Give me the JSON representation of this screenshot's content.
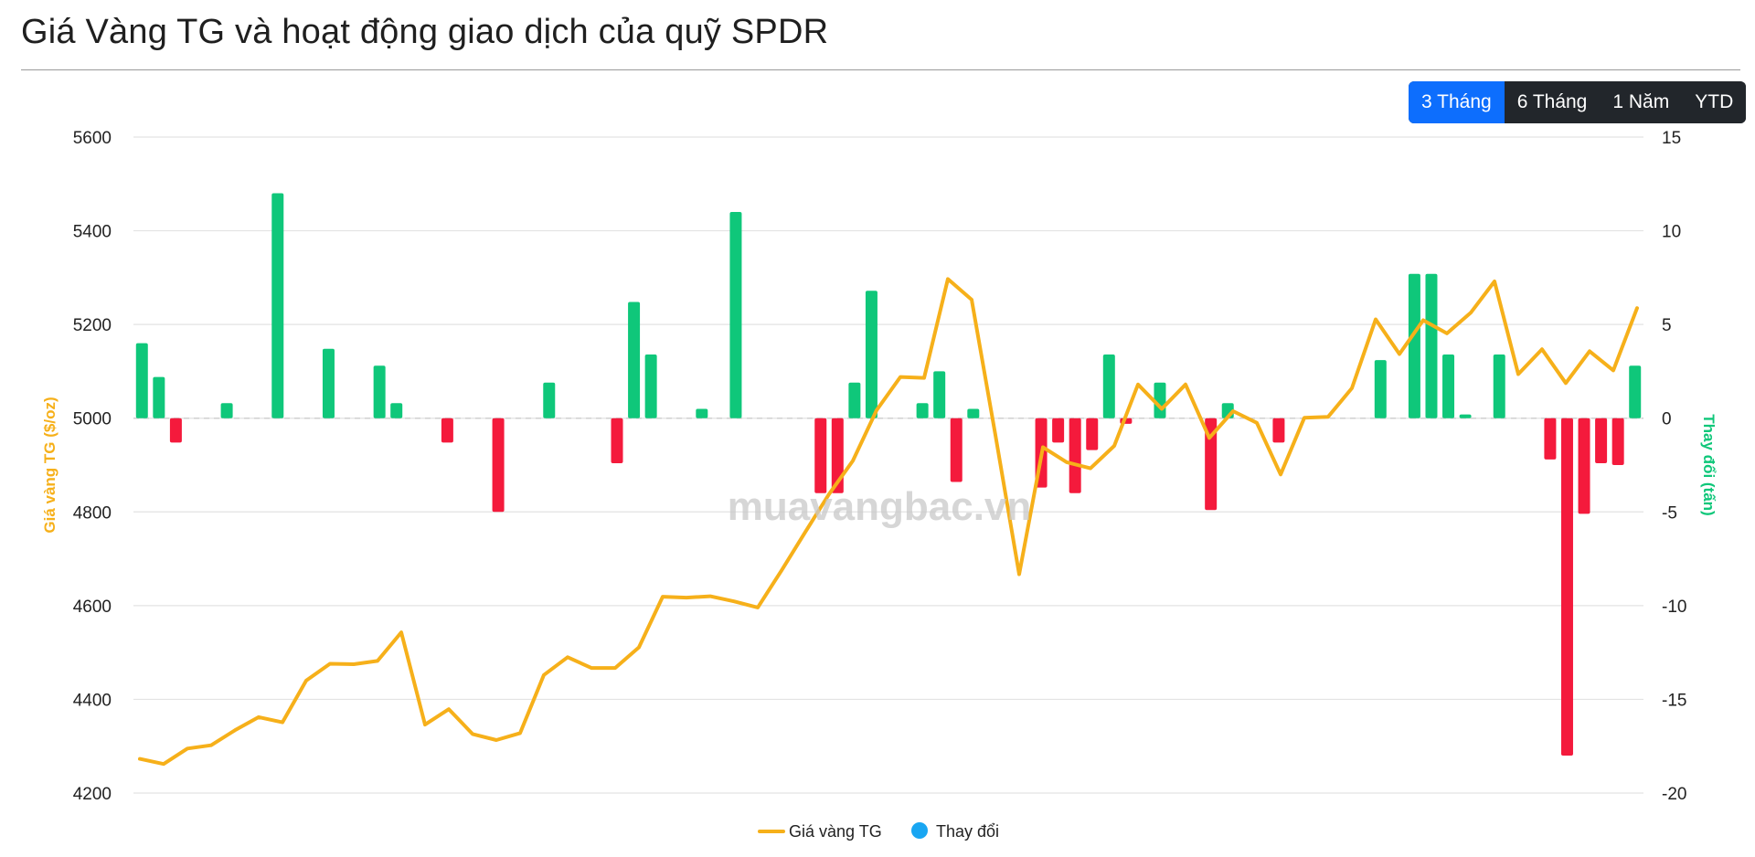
{
  "title": "Giá Vàng TG và hoạt động giao dịch của quỹ SPDR",
  "watermark": "muavangbac.vn",
  "range_buttons": [
    {
      "label": "3 Tháng",
      "active": true
    },
    {
      "label": "6 Tháng",
      "active": false
    },
    {
      "label": "1 Năm",
      "active": false
    },
    {
      "label": "YTD",
      "active": false
    }
  ],
  "colors": {
    "price_line": "#f6b01a",
    "increase_bar": "#0fc77a",
    "decrease_bar": "#f41a3c",
    "legend_change_dot": "#19a6f2",
    "right_axis_title": "#0fc77a",
    "left_axis_title": "#f6b01a",
    "grid": "#e3e3e3",
    "zero_line": "#cfcfcf"
  },
  "chart_data": {
    "type": "bar+line",
    "title": "Giá Vàng TG và hoạt động giao dịch của quỹ SPDR",
    "ylabel_left": "Giá vàng TG ($/oz)",
    "ylabel_right": "Thay đổi (tấn)",
    "ylim_left": [
      4200,
      5600
    ],
    "yticks_left": [
      4200,
      4400,
      4600,
      4800,
      5000,
      5200,
      5400,
      5600
    ],
    "ylim_right": [
      -20,
      15
    ],
    "yticks_right": [
      -20,
      -15,
      -10,
      -5,
      0,
      5,
      10,
      15
    ],
    "grid": true,
    "legend_placement": "bottom-center",
    "series": [
      {
        "name": "Giá vàng TG",
        "kind": "line",
        "axis": "left",
        "values": [
          4273,
          4262,
          4295,
          4302,
          4334,
          4362,
          4351,
          4440,
          4476,
          4475,
          4482,
          4543,
          4346,
          4379,
          4326,
          4313,
          4328,
          4452,
          4490,
          4467,
          4467,
          4511,
          4619,
          4617,
          4620,
          4609,
          4596,
          4675,
          4757,
          4838,
          4909,
          5017,
          5088,
          5086,
          5297,
          5253,
          4964,
          4667,
          4938,
          4906,
          4893,
          4941,
          5072,
          5020,
          5072,
          4958,
          5015,
          4990,
          4880,
          5001,
          5003,
          5064,
          5211,
          5137,
          5209,
          5181,
          5225,
          5292,
          5094,
          5147,
          5075,
          5143,
          5102,
          5235
        ]
      },
      {
        "name": "Thay đổi",
        "kind": "bar",
        "axis": "right",
        "values": [
          4.0,
          2.2,
          -1.3,
          0,
          0,
          0.8,
          0,
          0,
          12.0,
          0,
          0,
          3.7,
          0,
          0,
          2.8,
          0.8,
          0,
          0,
          -1.3,
          0,
          0,
          -5.0,
          0,
          0,
          1.9,
          0,
          0,
          0,
          -2.4,
          6.2,
          3.4,
          0,
          0,
          0.5,
          0,
          11.0,
          0,
          0,
          0,
          0,
          -4.0,
          -4.0,
          1.9,
          6.8,
          0,
          0,
          0.8,
          2.5,
          -3.4,
          0.5,
          0,
          0,
          0,
          -3.7,
          -1.3,
          -4.0,
          -1.7,
          3.4,
          -0.3,
          0,
          1.9,
          0,
          0,
          -4.9,
          0.8,
          0,
          0,
          -1.3,
          0,
          0,
          0,
          0,
          0,
          3.1,
          0,
          7.7,
          7.7,
          3.4,
          0.2,
          0,
          3.4,
          0,
          0,
          -2.2,
          -18.0,
          -5.1,
          -2.4,
          -2.5,
          2.8
        ]
      }
    ]
  },
  "legend": [
    {
      "label": "Giá vàng TG"
    },
    {
      "label": "Thay đổi"
    }
  ]
}
